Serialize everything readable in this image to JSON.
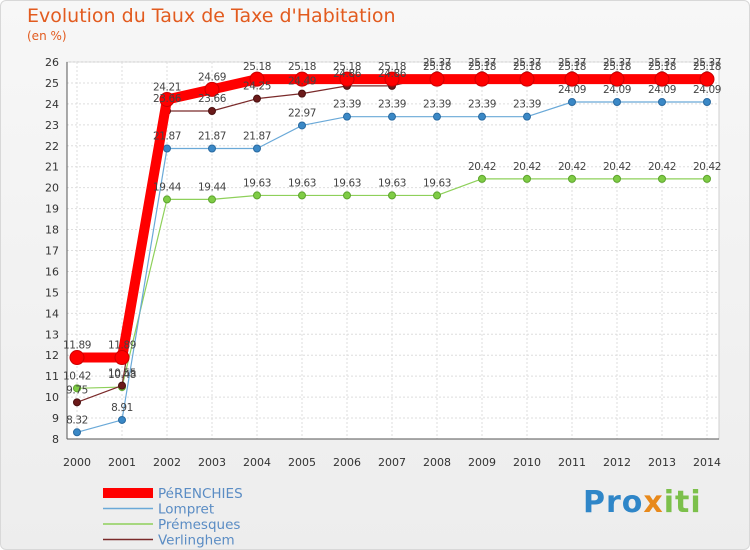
{
  "chart_data": {
    "type": "line",
    "title": "Evolution du Taux de Taxe d'Habitation",
    "subtitle": "(en %)",
    "xlabel": "",
    "ylabel": "",
    "x": [
      "2000",
      "2001",
      "2002",
      "2003",
      "2004",
      "2005",
      "2006",
      "2007",
      "2008",
      "2009",
      "2010",
      "2011",
      "2012",
      "2013",
      "2014"
    ],
    "ylim": [
      8,
      26
    ],
    "yticks": [
      "8",
      "9",
      "10",
      "11",
      "12",
      "13",
      "14",
      "15",
      "16",
      "17",
      "18",
      "19",
      "20",
      "21",
      "22",
      "23",
      "24",
      "25",
      "26"
    ],
    "grid": true,
    "legend_position": "bottom-left",
    "series": [
      {
        "name": "PéRENCHIES",
        "color": "#ff0000",
        "values": [
          11.89,
          11.89,
          24.21,
          24.69,
          25.18,
          25.18,
          25.18,
          25.18,
          25.18,
          25.18,
          25.18,
          25.18,
          25.18,
          25.18,
          25.18
        ],
        "labels": [
          "11.89",
          "11.89",
          "24.21",
          "24.69",
          "25.18",
          "25.18",
          "25.18",
          "25.18",
          "25.18",
          "25.18",
          "25.18",
          "25.18",
          "25.18",
          "25.18",
          "25.18"
        ]
      },
      {
        "name": "Lompret",
        "color": "#6aa9d8",
        "values": [
          8.32,
          8.91,
          21.87,
          21.87,
          21.87,
          22.97,
          23.39,
          23.39,
          23.39,
          23.39,
          23.39,
          24.09,
          24.09,
          24.09,
          24.09
        ],
        "labels": [
          "8.32",
          "8.91",
          "21.87",
          "21.87",
          "21.87",
          "22.97",
          "23.39",
          "23.39",
          "23.39",
          "23.39",
          "23.39",
          "24.09",
          "24.09",
          "24.09",
          "24.09"
        ]
      },
      {
        "name": "Prémesques",
        "color": "#8ed05a",
        "values": [
          10.42,
          10.48,
          19.44,
          19.44,
          19.63,
          19.63,
          19.63,
          19.63,
          19.63,
          20.42,
          20.42,
          20.42,
          20.42,
          20.42,
          20.42
        ],
        "labels": [
          "10.42",
          "10.48",
          "19.44",
          "19.44",
          "19.63",
          "19.63",
          "19.63",
          "19.63",
          "19.63",
          "20.42",
          "20.42",
          "20.42",
          "20.42",
          "20.42",
          "20.42"
        ]
      },
      {
        "name": "Verlinghem",
        "color": "#7a2a2a",
        "values": [
          9.75,
          10.55,
          23.66,
          23.66,
          24.25,
          24.49,
          24.86,
          24.86,
          25.37,
          25.37,
          25.37,
          25.37,
          25.37,
          25.37,
          25.37
        ],
        "labels": [
          "9.75",
          "10.55",
          "23.66",
          "23.66",
          "24.25",
          "24.49",
          "24.86",
          "24.86",
          "25.37",
          "25.37",
          "25.37",
          "25.37",
          "25.37",
          "25.37",
          "25.37"
        ]
      }
    ]
  },
  "logo": {
    "text": "Proxiti"
  }
}
